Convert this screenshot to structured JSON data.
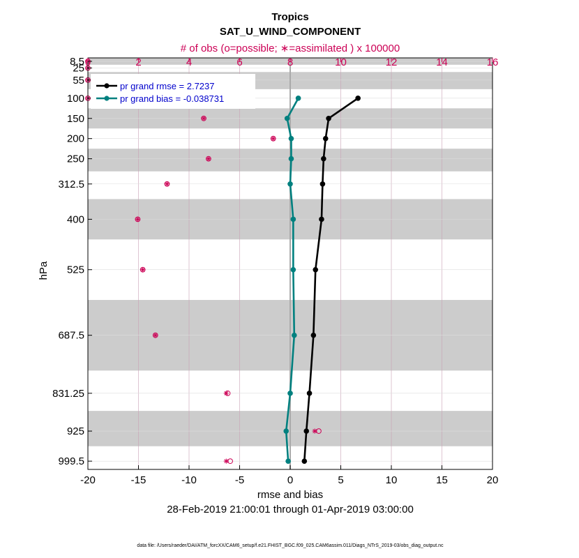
{
  "colors": {
    "obs": "#cc0055",
    "rmse": "#000000",
    "bias": "#00807f",
    "band": "#cccccc",
    "grid": "#dddddd",
    "legend_text": "#0000cc"
  },
  "chart_data": {
    "type": "line",
    "title": "Tropics",
    "subtitle": "SAT_U_WIND_COMPONENT",
    "top_axis_label": "# of obs (o=possible; ∗=assimilated ) x 100000",
    "xlabel": "rmse and bias",
    "ylabel": "hPa",
    "date_range": "28-Feb-2019 21:00:01 through 01-Apr-2019 03:00:00",
    "footnote": "data file: /Users/raeder/DAI/ATM_forcXX/CAM6_setup/f.e21.FHIST_BGC.f09_025.CAM6assim.011/Diags_NTrS_2019-03/obs_diag_output.nc",
    "xlim": [
      -20,
      20
    ],
    "xticks": [
      -20,
      -15,
      -10,
      -5,
      0,
      5,
      10,
      15,
      20
    ],
    "top_xlim": [
      0,
      16
    ],
    "top_xticks": [
      0,
      2,
      4,
      6,
      8,
      10,
      12,
      14,
      16
    ],
    "ylim": [
      1020,
      0
    ],
    "levels": [
      8.5,
      25,
      55,
      100,
      150,
      200,
      250,
      312.5,
      400,
      525,
      687.5,
      831.25,
      925,
      999.5
    ],
    "level_labels": [
      "8.5",
      "25",
      "55",
      "100",
      "150",
      "200",
      "250",
      "312.5",
      "400",
      "525",
      "687.5",
      "831.25",
      "925",
      "999.5"
    ],
    "shaded_bands": [
      [
        0,
        17
      ],
      [
        35,
        77.5
      ],
      [
        125,
        175
      ],
      [
        225,
        281.25
      ],
      [
        350,
        450
      ],
      [
        600,
        775
      ],
      [
        875,
        962.5
      ]
    ],
    "series": [
      {
        "name": "rmse",
        "legend": "pr grand rmse = 2.7237",
        "values": [
          6.7,
          3.8,
          3.5,
          3.3,
          3.2,
          3.1,
          2.5,
          2.3,
          1.9,
          1.6,
          1.4
        ]
      },
      {
        "name": "bias",
        "legend": "pr grand bias = -0.038731",
        "values": [
          0.8,
          -0.3,
          0.1,
          0.1,
          0.0,
          0.3,
          0.3,
          0.4,
          0.0,
          -0.4,
          -0.2
        ]
      }
    ],
    "series_levels": [
      100,
      150,
      200,
      250,
      312.5,
      400,
      525,
      687.5,
      831.25,
      925,
      999.5
    ],
    "obs_possible": [
      0.0,
      0.0,
      0.0,
      0.0,
      4.58,
      7.33,
      4.77,
      3.13,
      1.97,
      2.17,
      2.67,
      5.53,
      9.13,
      5.63
    ],
    "obs_assimilated": [
      0.0,
      0.0,
      0.0,
      0.0,
      4.58,
      7.33,
      4.77,
      3.13,
      1.97,
      2.17,
      2.67,
      5.47,
      8.97,
      5.47
    ]
  }
}
